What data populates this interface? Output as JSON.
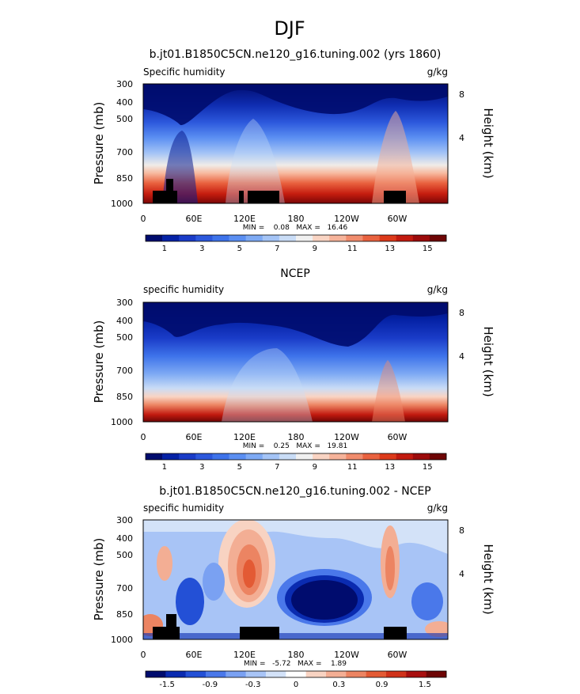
{
  "figure": {
    "title": "DJF",
    "axis_ylabel": "Pressure (mb)",
    "axis_y2label": "Height (km)",
    "y_ticks": [
      "300",
      "400",
      "500",
      "700",
      "850",
      "1000"
    ],
    "y2_ticks": [
      "8",
      "4"
    ],
    "x_ticks": [
      "0",
      "60E",
      "120E",
      "180",
      "120W",
      "60W"
    ]
  },
  "chart_data": [
    {
      "type": "heatmap",
      "panel_title": "b.jt01.B1850C5CN.ne120_g16.tuning.002 (yrs 1860)",
      "left_label": "Specific humidity",
      "units": "g/kg",
      "stats": "MIN =    0.08   MAX =   16.46",
      "x": [
        "0",
        "60E",
        "120E",
        "180",
        "120W",
        "60W"
      ],
      "y_pressure_mb": [
        300,
        400,
        500,
        700,
        850,
        1000
      ],
      "color_levels": [
        0,
        1,
        2,
        3,
        4,
        5,
        6,
        7,
        8,
        9,
        10,
        11,
        12,
        13,
        14,
        15,
        16
      ],
      "colorbar_labels": [
        "1",
        "3",
        "5",
        "7",
        "9",
        "11",
        "13",
        "15"
      ],
      "min": 0.08,
      "max": 16.46
    },
    {
      "type": "heatmap",
      "panel_title": "NCEP",
      "left_label": "specific humidity",
      "units": "g/kg",
      "stats": "MIN =    0.25   MAX =   19.81",
      "x": [
        "0",
        "60E",
        "120E",
        "180",
        "120W",
        "60W"
      ],
      "y_pressure_mb": [
        300,
        400,
        500,
        700,
        850,
        1000
      ],
      "color_levels": [
        0,
        1,
        2,
        3,
        4,
        5,
        6,
        7,
        8,
        9,
        10,
        11,
        12,
        13,
        14,
        15,
        16
      ],
      "colorbar_labels": [
        "1",
        "3",
        "5",
        "7",
        "9",
        "11",
        "13",
        "15"
      ],
      "min": 0.25,
      "max": 19.81
    },
    {
      "type": "heatmap",
      "panel_title": "b.jt01.B1850C5CN.ne120_g16.tuning.002 - NCEP",
      "left_label": "specific humidity",
      "units": "g/kg",
      "stats": "MIN =   -5.72   MAX =    1.89",
      "x": [
        "0",
        "60E",
        "120E",
        "180",
        "120W",
        "60W"
      ],
      "y_pressure_mb": [
        300,
        400,
        500,
        700,
        850,
        1000
      ],
      "color_levels": [
        -2.1,
        -1.8,
        -1.5,
        -1.2,
        -0.9,
        -0.6,
        -0.3,
        0,
        0.3,
        0.6,
        0.9,
        1.2,
        1.5,
        1.8,
        2.1
      ],
      "colorbar_labels": [
        "-1.5",
        "-0.9",
        "-0.3",
        "0",
        "0.3",
        "0.9",
        "1.5"
      ],
      "min": -5.72,
      "max": 1.89
    }
  ],
  "colors": {
    "seq_palette": [
      "#000c6e",
      "#0522a6",
      "#1a3cc8",
      "#2c58dc",
      "#3e73ea",
      "#5b8ff2",
      "#7eaaf4",
      "#a4c4f6",
      "#c9dcf6",
      "#f0f0f0",
      "#f9d4c3",
      "#f6b39a",
      "#f08c6d",
      "#e9623f",
      "#dc3a1a",
      "#c21a0f",
      "#9c0b0b",
      "#6e0505"
    ],
    "div_palette": [
      "#000c6e",
      "#0a2bb0",
      "#2350d6",
      "#4a78ea",
      "#7aa1f2",
      "#a8c4f6",
      "#d3e2f8",
      "#ffffff",
      "#f8d3c2",
      "#f3ae94",
      "#ec8462",
      "#e35a34",
      "#d0321a",
      "#a80f0f",
      "#6e0505"
    ],
    "terrain": "#000000"
  }
}
